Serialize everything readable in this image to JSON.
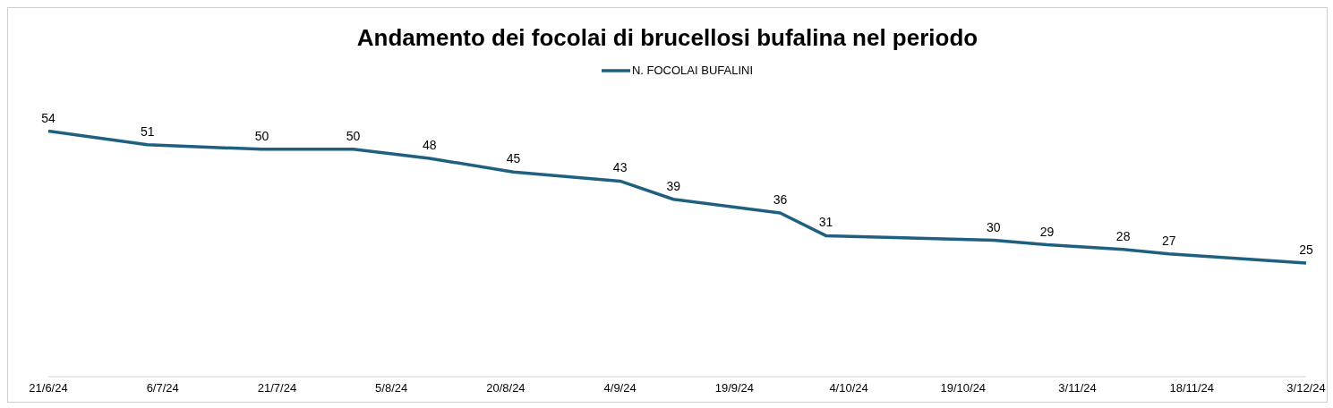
{
  "chart_data": {
    "type": "line",
    "title": "Andamento dei focolai di brucellosi bufalina nel periodo",
    "x": [
      "2024-06-21",
      "2024-07-04",
      "2024-07-19",
      "2024-07-31",
      "2024-08-10",
      "2024-08-21",
      "2024-09-04",
      "2024-09-11",
      "2024-09-25",
      "2024-10-01",
      "2024-10-23",
      "2024-10-30",
      "2024-11-09",
      "2024-11-15",
      "2024-12-03"
    ],
    "series": [
      {
        "name": "N. FOCOLAI BUFALINI",
        "color": "#1f6080",
        "values": [
          54,
          51,
          50,
          50,
          48,
          45,
          43,
          39,
          36,
          31,
          30,
          29,
          28,
          27,
          25
        ]
      }
    ],
    "xlim": [
      "2024-06-21",
      "2024-12-03"
    ],
    "xticks": [
      {
        "value": "2024-06-21",
        "label": "21/6/24"
      },
      {
        "value": "2024-07-06",
        "label": "6/7/24"
      },
      {
        "value": "2024-07-21",
        "label": "21/7/24"
      },
      {
        "value": "2024-08-05",
        "label": "5/8/24"
      },
      {
        "value": "2024-08-20",
        "label": "20/8/24"
      },
      {
        "value": "2024-09-04",
        "label": "4/9/24"
      },
      {
        "value": "2024-09-19",
        "label": "19/9/24"
      },
      {
        "value": "2024-10-04",
        "label": "4/10/24"
      },
      {
        "value": "2024-10-19",
        "label": "19/10/24"
      },
      {
        "value": "2024-11-03",
        "label": "3/11/24"
      },
      {
        "value": "2024-11-18",
        "label": "18/11/24"
      },
      {
        "value": "2024-12-03",
        "label": "3/12/24"
      }
    ],
    "legend": "top",
    "grid": false,
    "marker": "none",
    "line_style": "solid",
    "data_labels": true
  }
}
